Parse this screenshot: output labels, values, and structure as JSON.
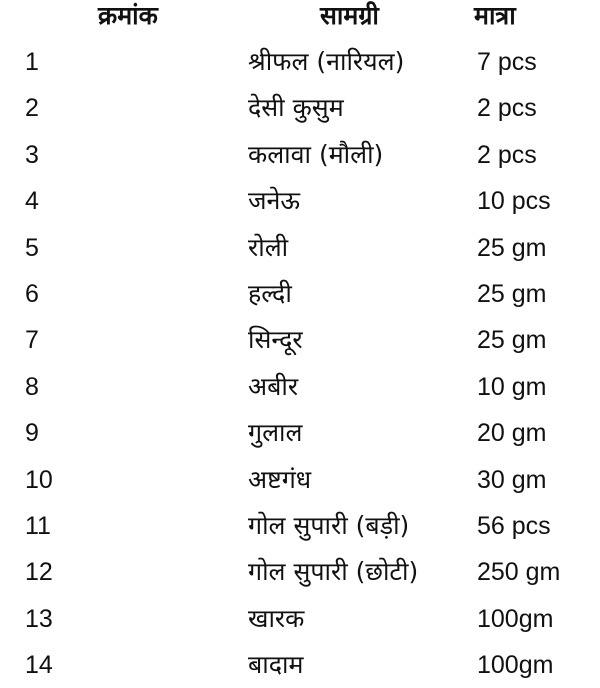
{
  "table": {
    "headers": [
      "क्रमांक",
      "सामग्री",
      "मात्रा"
    ],
    "rows": [
      [
        "1",
        "श्रीफल (नारियल)",
        "7 pcs"
      ],
      [
        "2",
        "देसी कुसुम",
        "2 pcs"
      ],
      [
        "3",
        "कलावा (मौली)",
        "2 pcs"
      ],
      [
        "4",
        "जनेऊ",
        "10 pcs"
      ],
      [
        "5",
        "रोली",
        "25 gm"
      ],
      [
        "6",
        "हल्दी",
        "25 gm"
      ],
      [
        "7",
        "सिन्दूर",
        "25 gm"
      ],
      [
        "8",
        "अबीर",
        "10 gm"
      ],
      [
        "9",
        "गुलाल",
        "20 gm"
      ],
      [
        "10",
        "अष्टगंध",
        "30 gm"
      ],
      [
        "11",
        "गोल सुपारी (बड़ी)",
        "56 pcs"
      ],
      [
        "12",
        "गोल सुपारी (छोटी)",
        "250 gm"
      ],
      [
        "13",
        "खारक",
        "100gm"
      ],
      [
        "14",
        "बादाम",
        "100gm"
      ]
    ]
  }
}
